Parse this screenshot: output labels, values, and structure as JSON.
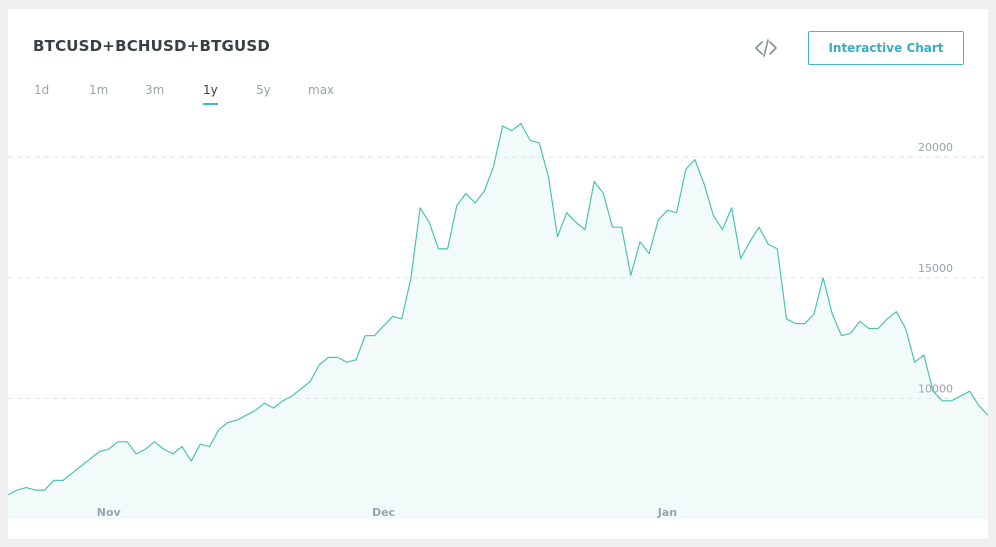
{
  "header": {
    "title": "BTCUSD+BCHUSD+BTGUSD",
    "embed_icon": "code-brackets-icon",
    "interactive_chart_label": "Interactive Chart"
  },
  "ranges": [
    {
      "label": "1d",
      "active": false
    },
    {
      "label": "1m",
      "active": false
    },
    {
      "label": "3m",
      "active": false
    },
    {
      "label": "1y",
      "active": true
    },
    {
      "label": "5y",
      "active": false
    },
    {
      "label": "max",
      "active": false
    }
  ],
  "colors": {
    "line": "#4cc4ae",
    "area": "#f2fbfa",
    "accent": "#3fb8c8"
  },
  "chart_data": {
    "type": "area",
    "title": "BTCUSD+BCHUSD+BTGUSD",
    "xlabel": "",
    "ylabel": "",
    "xlim": [
      "2017-10-21",
      "2018-02-05"
    ],
    "ylim": [
      5000,
      22000
    ],
    "yticks": [
      10000,
      15000,
      20000
    ],
    "grid": true,
    "x_ticks": [
      {
        "label": "Nov",
        "date": "2017-11-01"
      },
      {
        "label": "Dec",
        "date": "2017-12-01"
      },
      {
        "label": "Jan",
        "date": "2018-01-01"
      }
    ],
    "series": [
      {
        "x": [
          "2017-10-21",
          "2017-10-22",
          "2017-10-23",
          "2017-10-24",
          "2017-10-25",
          "2017-10-26",
          "2017-10-27",
          "2017-10-28",
          "2017-10-29",
          "2017-10-30",
          "2017-10-31",
          "2017-11-01",
          "2017-11-02",
          "2017-11-03",
          "2017-11-04",
          "2017-11-05",
          "2017-11-06",
          "2017-11-07",
          "2017-11-08",
          "2017-11-09",
          "2017-11-10",
          "2017-11-11",
          "2017-11-12",
          "2017-11-13",
          "2017-11-14",
          "2017-11-15",
          "2017-11-16",
          "2017-11-17",
          "2017-11-18",
          "2017-11-19",
          "2017-11-20",
          "2017-11-21",
          "2017-11-22",
          "2017-11-23",
          "2017-11-24",
          "2017-11-25",
          "2017-11-26",
          "2017-11-27",
          "2017-11-28",
          "2017-11-29",
          "2017-11-30",
          "2017-12-01",
          "2017-12-02",
          "2017-12-03",
          "2017-12-04",
          "2017-12-05",
          "2017-12-06",
          "2017-12-07",
          "2017-12-08",
          "2017-12-09",
          "2017-12-10",
          "2017-12-11",
          "2017-12-12",
          "2017-12-13",
          "2017-12-14",
          "2017-12-15",
          "2017-12-16",
          "2017-12-17",
          "2017-12-18",
          "2017-12-19",
          "2017-12-20",
          "2017-12-21",
          "2017-12-22",
          "2017-12-23",
          "2017-12-24",
          "2017-12-25",
          "2017-12-26",
          "2017-12-27",
          "2017-12-28",
          "2017-12-29",
          "2017-12-30",
          "2017-12-31",
          "2018-01-01",
          "2018-01-02",
          "2018-01-03",
          "2018-01-04",
          "2018-01-05",
          "2018-01-06",
          "2018-01-07",
          "2018-01-08",
          "2018-01-09",
          "2018-01-10",
          "2018-01-11",
          "2018-01-12",
          "2018-01-13",
          "2018-01-14",
          "2018-01-15",
          "2018-01-16",
          "2018-01-17",
          "2018-01-18",
          "2018-01-19",
          "2018-01-20",
          "2018-01-21",
          "2018-01-22",
          "2018-01-23",
          "2018-01-24",
          "2018-01-25",
          "2018-01-26",
          "2018-01-27",
          "2018-01-28",
          "2018-01-29",
          "2018-01-30",
          "2018-01-31",
          "2018-02-01",
          "2018-02-02",
          "2018-02-03",
          "2018-02-04",
          "2018-02-05"
        ],
        "y": [
          6000,
          6200,
          6300,
          6200,
          6200,
          6600,
          6600,
          6900,
          7200,
          7500,
          7800,
          7900,
          8200,
          8200,
          7700,
          7900,
          8200,
          7900,
          7700,
          8000,
          7400,
          8100,
          8000,
          8700,
          9000,
          9100,
          9300,
          9500,
          9800,
          9600,
          9900,
          10100,
          10400,
          10700,
          11400,
          11700,
          11700,
          11500,
          11600,
          12600,
          12600,
          13000,
          13400,
          13300,
          15000,
          17900,
          17300,
          16200,
          16200,
          18000,
          18500,
          18100,
          18600,
          19600,
          21300,
          21100,
          21400,
          20700,
          20600,
          19200,
          16700,
          17700,
          17300,
          17000,
          19000,
          18500,
          17100,
          17100,
          15100,
          16500,
          16000,
          17400,
          17800,
          17700,
          19500,
          19900,
          18900,
          17600,
          17000,
          17900,
          15800,
          16500,
          17100,
          16400,
          16200,
          13300,
          13100,
          13100,
          13500,
          15000,
          13500,
          12600,
          12700,
          13200,
          12900,
          12900,
          13300,
          13600,
          12900,
          11500,
          11800,
          10300,
          9900,
          9900,
          10100,
          10300,
          9700,
          9300
        ]
      }
    ]
  }
}
